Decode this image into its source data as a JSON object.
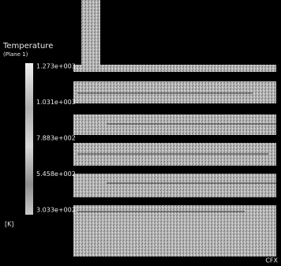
{
  "legend": {
    "title": "Temperature",
    "subtitle": "(Plane 1)",
    "labels": [
      "1.273e+003",
      "1.031e+003",
      "7.883e+002",
      "5.458e+002",
      "3.033e+002"
    ],
    "unit": "[K]"
  },
  "logo": "CFX"
}
